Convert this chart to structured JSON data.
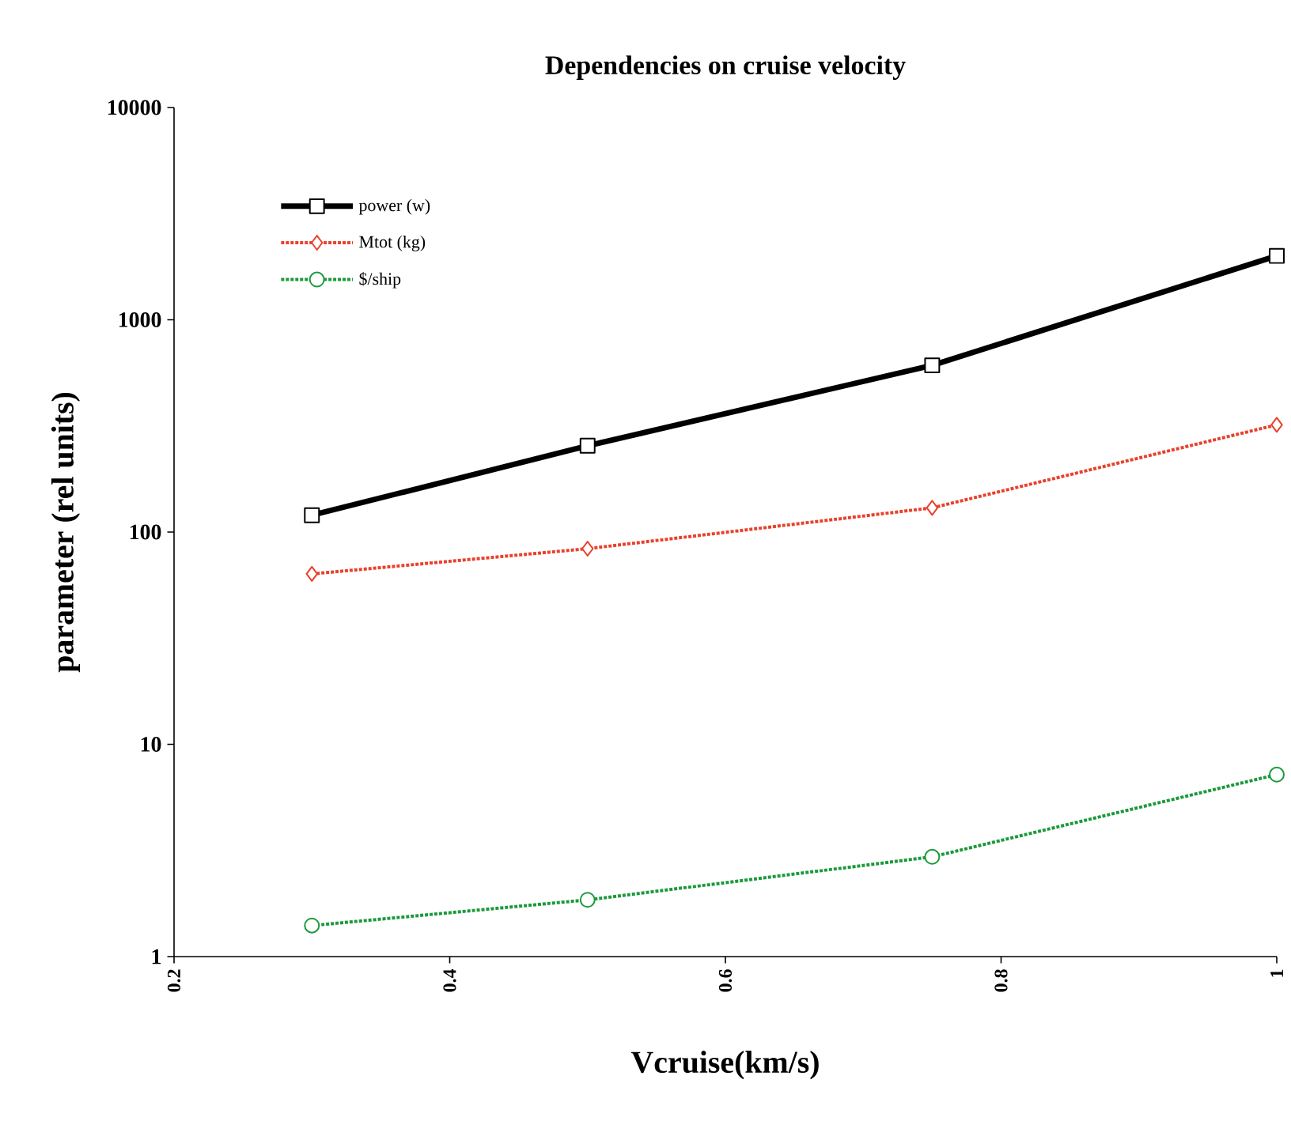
{
  "chart_data": {
    "type": "line",
    "title": "Dependencies on cruise velocity",
    "xlabel": "Vcruise(km/s)",
    "ylabel": "parameter (rel units)",
    "x": [
      0.3,
      0.5,
      0.75,
      1.0
    ],
    "series": [
      {
        "name": "power (w)",
        "color": "#000000",
        "values": [
          120,
          255,
          610,
          2000
        ],
        "marker": "square",
        "line_style": "solid"
      },
      {
        "name": "Mtot (kg)",
        "color": "#e8412c",
        "values": [
          63.5,
          83.5,
          130,
          320
        ],
        "marker": "diamond",
        "line_style": "dotted"
      },
      {
        "name": "$/ship",
        "color": "#1a9a3a",
        "values": [
          1.4,
          1.85,
          2.95,
          7.2
        ],
        "marker": "circle",
        "line_style": "dotted"
      }
    ],
    "log": "y",
    "xlim": [
      0.2,
      1.0
    ],
    "ylim": [
      1,
      10000
    ],
    "xticks": [
      0.2,
      0.4,
      0.6,
      0.8,
      1
    ],
    "yticks": [
      1,
      10,
      100,
      1000,
      10000
    ],
    "legend": "top left",
    "grid": false
  }
}
